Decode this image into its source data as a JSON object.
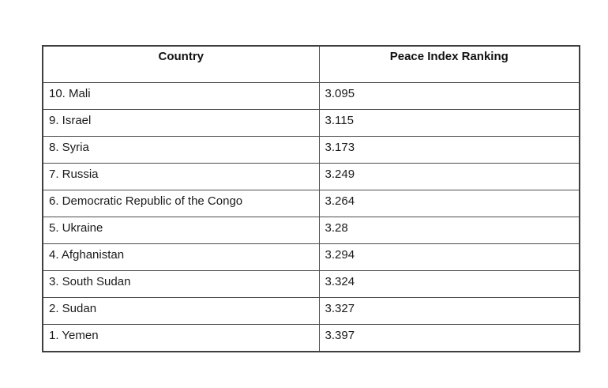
{
  "table": {
    "headers": {
      "country": "Country",
      "ranking": "Peace Index Ranking"
    },
    "rows": [
      {
        "country": "10. Mali",
        "value": "3.095"
      },
      {
        "country": "9. Israel",
        "value": "3.115"
      },
      {
        "country": "8. Syria",
        "value": "3.173"
      },
      {
        "country": "7. Russia",
        "value": "3.249"
      },
      {
        "country": "6. Democratic Republic of the Congo",
        "value": "3.264"
      },
      {
        "country": "5. Ukraine",
        "value": "3.28"
      },
      {
        "country": "4. Afghanistan",
        "value": "3.294"
      },
      {
        "country": "3. South Sudan",
        "value": "3.324"
      },
      {
        "country": "2. Sudan",
        "value": "3.327"
      },
      {
        "country": "1. Yemen",
        "value": "3.397"
      }
    ]
  },
  "colors": {
    "border": "#4d4d4d",
    "outer_border": "#3f3f3f",
    "text": "#1a1a1a",
    "background": "#ffffff"
  }
}
